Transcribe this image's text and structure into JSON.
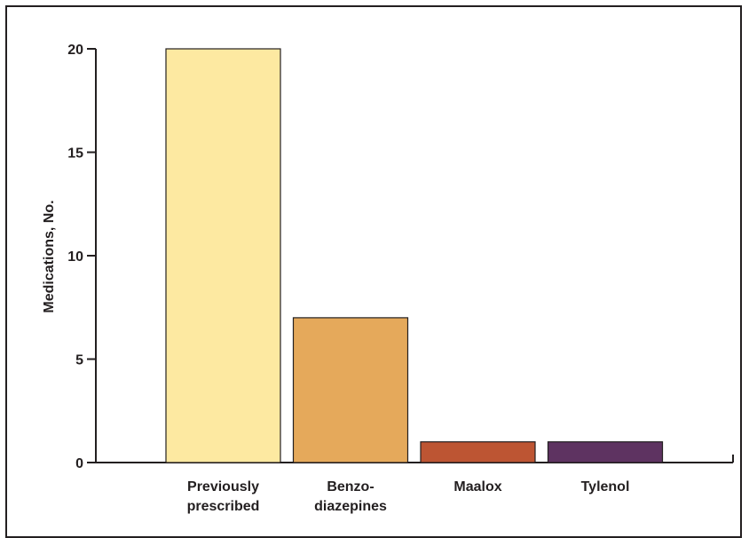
{
  "chart_data": {
    "type": "bar",
    "title": "",
    "xlabel": "",
    "ylabel": "Medications, No.",
    "ylim": [
      0,
      20
    ],
    "yticks": [
      0,
      5,
      10,
      15,
      20
    ],
    "grid": false,
    "categories": [
      [
        "Previously",
        "prescribed"
      ],
      [
        "Benzo-",
        "diazepines"
      ],
      [
        "Maalox"
      ],
      [
        "Tylenol"
      ]
    ],
    "values": [
      20,
      7,
      1,
      1
    ],
    "colors": [
      "#fde9a1",
      "#e5a95b",
      "#bd5533",
      "#5e3361"
    ]
  }
}
